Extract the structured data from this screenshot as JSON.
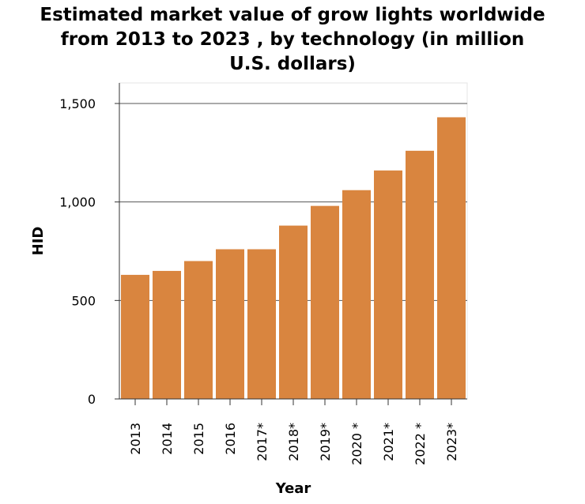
{
  "chart_data": {
    "type": "bar",
    "title_lines": [
      "Estimated market value of grow lights worldwide",
      "from 2013 to 2023 , by technology (in million",
      "U.S. dollars)"
    ],
    "xlabel": "Year",
    "ylabel": "HID",
    "categories": [
      "2013",
      "2014",
      "2015",
      "2016",
      "2017*",
      "2018*",
      "2019*",
      "2020 *",
      "2021*",
      "2022 *",
      "2023*"
    ],
    "values": [
      630,
      650,
      700,
      760,
      760,
      880,
      980,
      1060,
      1160,
      1260,
      1430
    ],
    "ylim": [
      0,
      1500
    ],
    "yticks": [
      0,
      500,
      1000,
      1500
    ],
    "ytick_labels": [
      "0",
      "500",
      "1,000",
      "1,500"
    ],
    "grid": true,
    "bar_color": "#d9853f",
    "grid_color": "#b0b0b0"
  }
}
